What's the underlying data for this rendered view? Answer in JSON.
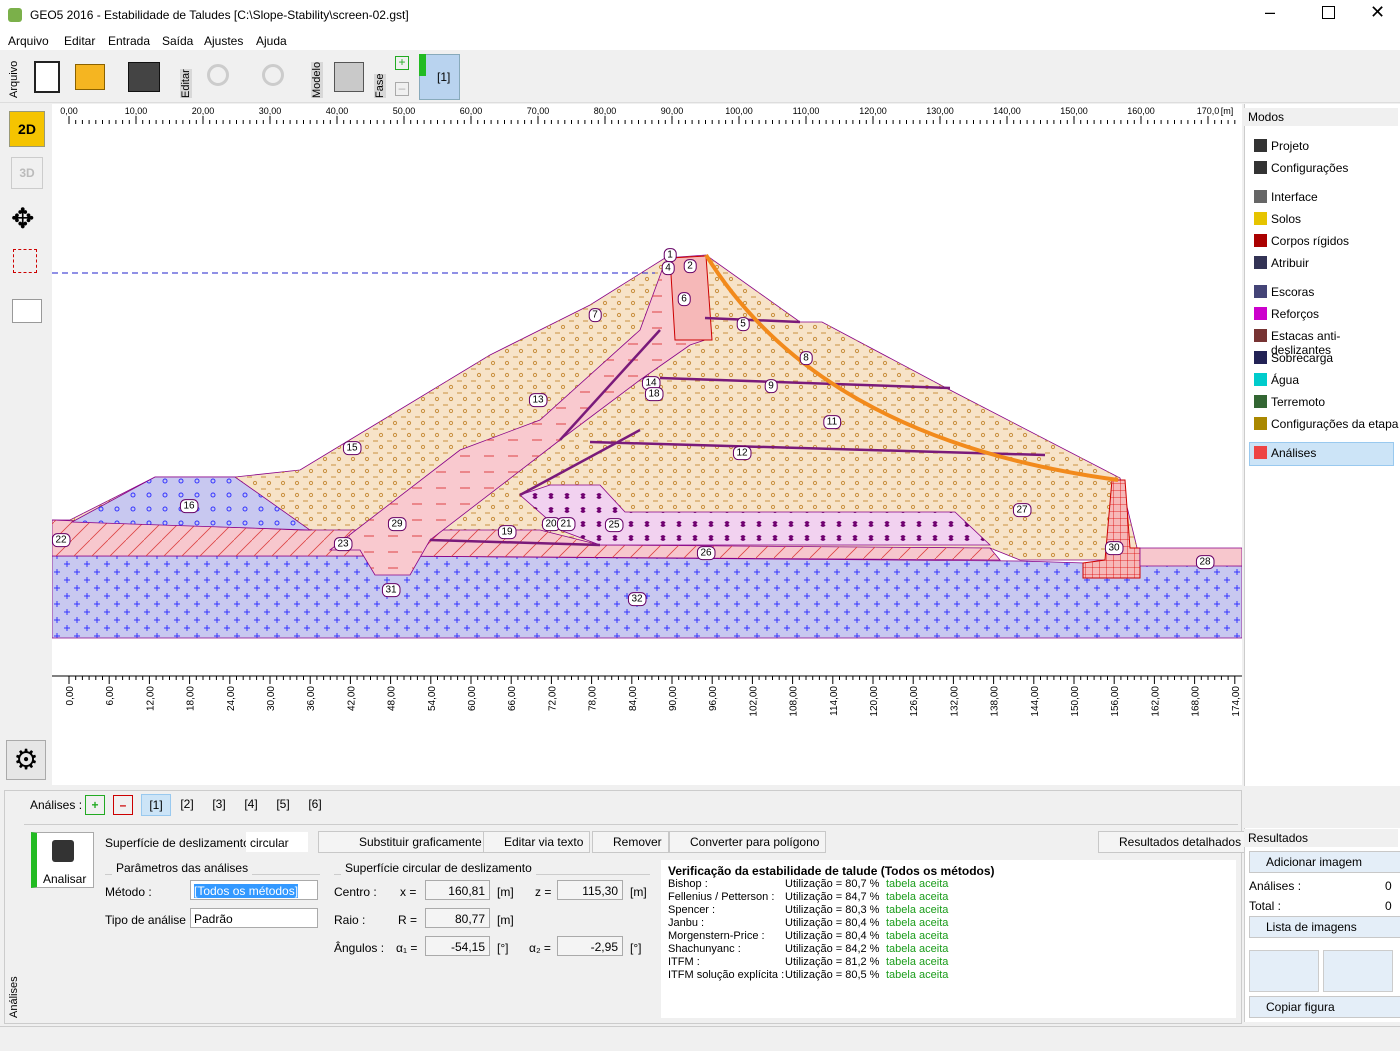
{
  "window": {
    "title": "GEO5 2016 - Estabilidade de Taludes [C:\\Slope-Stability\\screen-02.gst]",
    "menu": [
      "Arquivo",
      "Editar",
      "Entrada",
      "Saída",
      "Ajustes",
      "Ajuda"
    ]
  },
  "toolbar": {
    "groups": [
      "Arquivo",
      "Editar",
      "Modelo",
      "Fase"
    ],
    "phase": "[1]"
  },
  "view_tools": [
    "2D",
    "3D"
  ],
  "ruler_top": {
    "labels": [
      "0,00",
      "10,00",
      "20,00",
      "30,00",
      "40,00",
      "50,00",
      "60,00",
      "70,00",
      "80,00",
      "90,00",
      "100,00",
      "110,00",
      "120,00",
      "130,00",
      "140,00",
      "150,00",
      "160,00",
      "170,0"
    ],
    "unit": "[m]"
  },
  "ruler_bottom": {
    "labels": [
      "0,00",
      "6,00",
      "12,00",
      "18,00",
      "24,00",
      "30,00",
      "36,00",
      "42,00",
      "48,00",
      "54,00",
      "60,00",
      "66,00",
      "72,00",
      "78,00",
      "84,00",
      "90,00",
      "96,00",
      "102,00",
      "108,00",
      "114,00",
      "120,00",
      "126,00",
      "132,00",
      "138,00",
      "144,00",
      "150,00",
      "156,00",
      "162,00",
      "168,00",
      "174,00"
    ]
  },
  "canvas": {
    "region_labels": [
      "1",
      "2",
      "4",
      "6",
      "5",
      "7",
      "8",
      "9",
      "14",
      "18",
      "11",
      "12",
      "13",
      "15",
      "16",
      "19",
      "20",
      "21",
      "22",
      "23",
      "25",
      "26",
      "27",
      "28",
      "29",
      "30",
      "31",
      "32"
    ]
  },
  "modes": {
    "title": "Modos",
    "items": [
      "Projeto",
      "Configurações",
      "Interface",
      "Solos",
      "Corpos rígidos",
      "Atribuir",
      "Escoras",
      "Reforços",
      "Estacas anti-deslizantes",
      "Sobrecarga",
      "Água",
      "Terremoto",
      "Configurações da etapa",
      "Análises"
    ]
  },
  "analysis_panel": {
    "side_label": "Análises",
    "tabs_label": "Análises :",
    "tabs": [
      "[1]",
      "[2]",
      "[3]",
      "[4]",
      "[5]",
      "[6]"
    ],
    "run": "Analisar",
    "surface_label": "Superfície de deslizamento :",
    "surface_type": "circular",
    "buttons": [
      "Substituir graficamente",
      "Editar via texto",
      "Remover",
      "Converter para polígono",
      "Resultados detalhados"
    ],
    "params_title": "Parâmetros das análises",
    "method_label": "Método :",
    "method": "[Todos os métodos]",
    "analysis_type_label": "Tipo de análise :",
    "analysis_type": "Padrão",
    "circle_title": "Superfície circular de deslizamento",
    "center_label": "Centro :",
    "x_label": "x =",
    "x": "160,81",
    "z_label": "z =",
    "z": "115,30",
    "radius_label": "Raio :",
    "r_label": "R =",
    "r": "80,77",
    "angles_label": "Ângulos :",
    "a1_label": "α₁ =",
    "a1": "-54,15",
    "a2_label": "α₂ =",
    "a2": "-2,95",
    "unit_m": "[m]",
    "unit_deg": "[°]",
    "verification_title": "Verificação da estabilidade de talude (Todos os métodos)",
    "results": [
      [
        "Bishop :",
        "Utilização = 80,7 %",
        "tabela aceita"
      ],
      [
        "Fellenius / Petterson :",
        "Utilização = 84,7 %",
        "tabela aceita"
      ],
      [
        "Spencer :",
        "Utilização = 80,3 %",
        "tabela aceita"
      ],
      [
        "Janbu :",
        "Utilização = 80,4 %",
        "tabela aceita"
      ],
      [
        "Morgenstern-Price :",
        "Utilização = 80,4 %",
        "tabela aceita"
      ],
      [
        "Shachunyanc :",
        "Utilização = 84,2 %",
        "tabela aceita"
      ],
      [
        "ITFM :",
        "Utilização = 81,2 %",
        "tabela aceita"
      ],
      [
        "ITFM solução explícita :",
        "Utilização = 80,5 %",
        "tabela aceita"
      ]
    ]
  },
  "results_panel": {
    "title": "Resultados",
    "add_image": "Adicionar imagem",
    "analyses_label": "Análises :",
    "analyses": "0",
    "total_label": "Total :",
    "total": "0",
    "image_list": "Lista de imagens",
    "copy": "Copiar figura"
  }
}
